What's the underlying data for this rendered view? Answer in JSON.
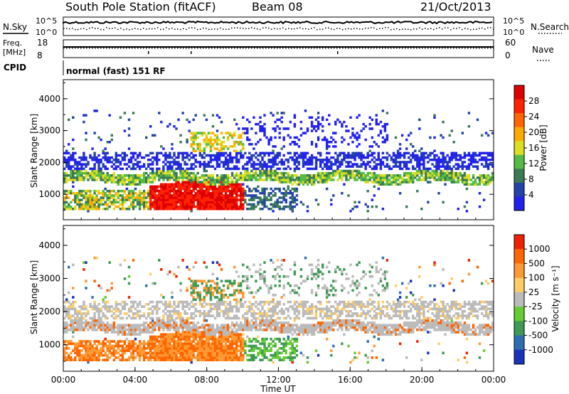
{
  "header": {
    "title": "South Pole Station (fitACF)",
    "beam": "Beam 08",
    "date": "21/Oct/2013"
  },
  "status_panels": {
    "nsky_label": "N.Sky",
    "nsearch_label": "N.Search",
    "freq_label_1": "Freq.",
    "freq_label_2": "[MHz]",
    "nave_label": "Nave",
    "cpid_label": "CPID",
    "cpid_text": "normal (fast) 151 RF",
    "noise_ticks": [
      "10^5",
      "10^0"
    ],
    "freq_ticks": [
      "18",
      "8"
    ],
    "nave_ticks": [
      "60",
      "0"
    ]
  },
  "colorbars": {
    "power": {
      "label": "Power [dB]",
      "ticks": [
        "28",
        "24",
        "20",
        "16",
        "12",
        "8",
        "4"
      ],
      "colors": [
        "#2222ee",
        "#2244aa",
        "#3a7a55",
        "#55bb44",
        "#dddd22",
        "#ffaa00",
        "#ff6600",
        "#ff2200",
        "#dd0000"
      ]
    },
    "velocity": {
      "label": "Velocity [m s⁻¹]",
      "ticks": [
        "1000",
        "500",
        "100",
        "25",
        "-25",
        "-100",
        "-500",
        "-1000"
      ],
      "colors": [
        "#1a33bb",
        "#2f6fb0",
        "#3f9a55",
        "#66cc33",
        "#bbbbbb",
        "#ffcc66",
        "#ff9933",
        "#ff6600",
        "#ee2200"
      ]
    }
  },
  "chart_data": [
    {
      "type": "heatmap",
      "name": "Power",
      "ylabel": "Slant Range [km]",
      "xlabel": "",
      "xlim": [
        "00:00",
        "24:00"
      ],
      "ylim": [
        200,
        4600
      ],
      "yticks": [
        "4000",
        "3000",
        "2000",
        "1000"
      ],
      "colorbar_label": "Power [dB]",
      "colorbar_range": [
        0,
        30
      ]
    },
    {
      "type": "heatmap",
      "name": "Velocity",
      "ylabel": "Slant Range [km]",
      "xlabel": "Time UT",
      "xlim": [
        "00:00",
        "24:00"
      ],
      "ylim": [
        200,
        4600
      ],
      "yticks": [
        "4000",
        "3000",
        "2000",
        "1000"
      ],
      "xticks": [
        "00:00",
        "04:00",
        "08:00",
        "12:00",
        "16:00",
        "20:00",
        "00:00"
      ],
      "colorbar_label": "Velocity [m s⁻¹]",
      "colorbar_range": [
        -1000,
        1000
      ]
    }
  ]
}
